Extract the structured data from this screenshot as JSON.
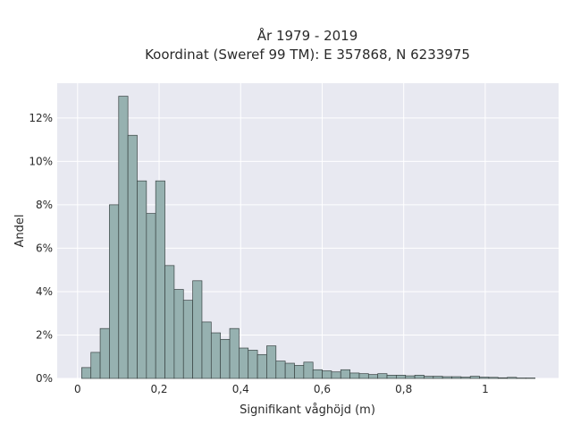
{
  "chart_data": {
    "type": "bar",
    "title_lines": [
      "År 1979 - 2019",
      "Koordinat (Sweref 99 TM): E 357868, N 6233975"
    ],
    "xlabel": "Signifikant våghöjd (m)",
    "ylabel": "Andel",
    "bin_width": 0.0227,
    "bin_start": 0.01,
    "values": [
      0.5,
      1.2,
      2.3,
      8.0,
      13.0,
      11.2,
      9.1,
      7.6,
      9.1,
      5.2,
      4.1,
      3.6,
      4.5,
      2.6,
      2.1,
      1.8,
      2.3,
      1.4,
      1.3,
      1.1,
      1.5,
      0.8,
      0.7,
      0.6,
      0.75,
      0.4,
      0.35,
      0.3,
      0.4,
      0.25,
      0.22,
      0.18,
      0.22,
      0.15,
      0.15,
      0.12,
      0.15,
      0.1,
      0.1,
      0.08,
      0.08,
      0.06,
      0.1,
      0.06,
      0.05,
      0.03,
      0.05,
      0.02,
      0.02
    ],
    "xlim": [
      -0.05,
      1.18
    ],
    "ylim": [
      0,
      13.6
    ],
    "xticks": [
      0,
      0.2,
      0.4,
      0.6,
      0.8,
      1
    ],
    "xtick_labels": [
      "0",
      "0,2",
      "0,4",
      "0,6",
      "0,8",
      "1"
    ],
    "yticks": [
      0,
      2,
      4,
      6,
      8,
      10,
      12
    ],
    "ytick_labels": [
      "0%",
      "2%",
      "4%",
      "6%",
      "8%",
      "10%",
      "12%"
    ],
    "grid": true,
    "colors": {
      "bar_fill": "#96b1b0",
      "bar_stroke": "#3a4444",
      "plot_background": "#e8e9f1",
      "grid": "#ffffff"
    }
  }
}
